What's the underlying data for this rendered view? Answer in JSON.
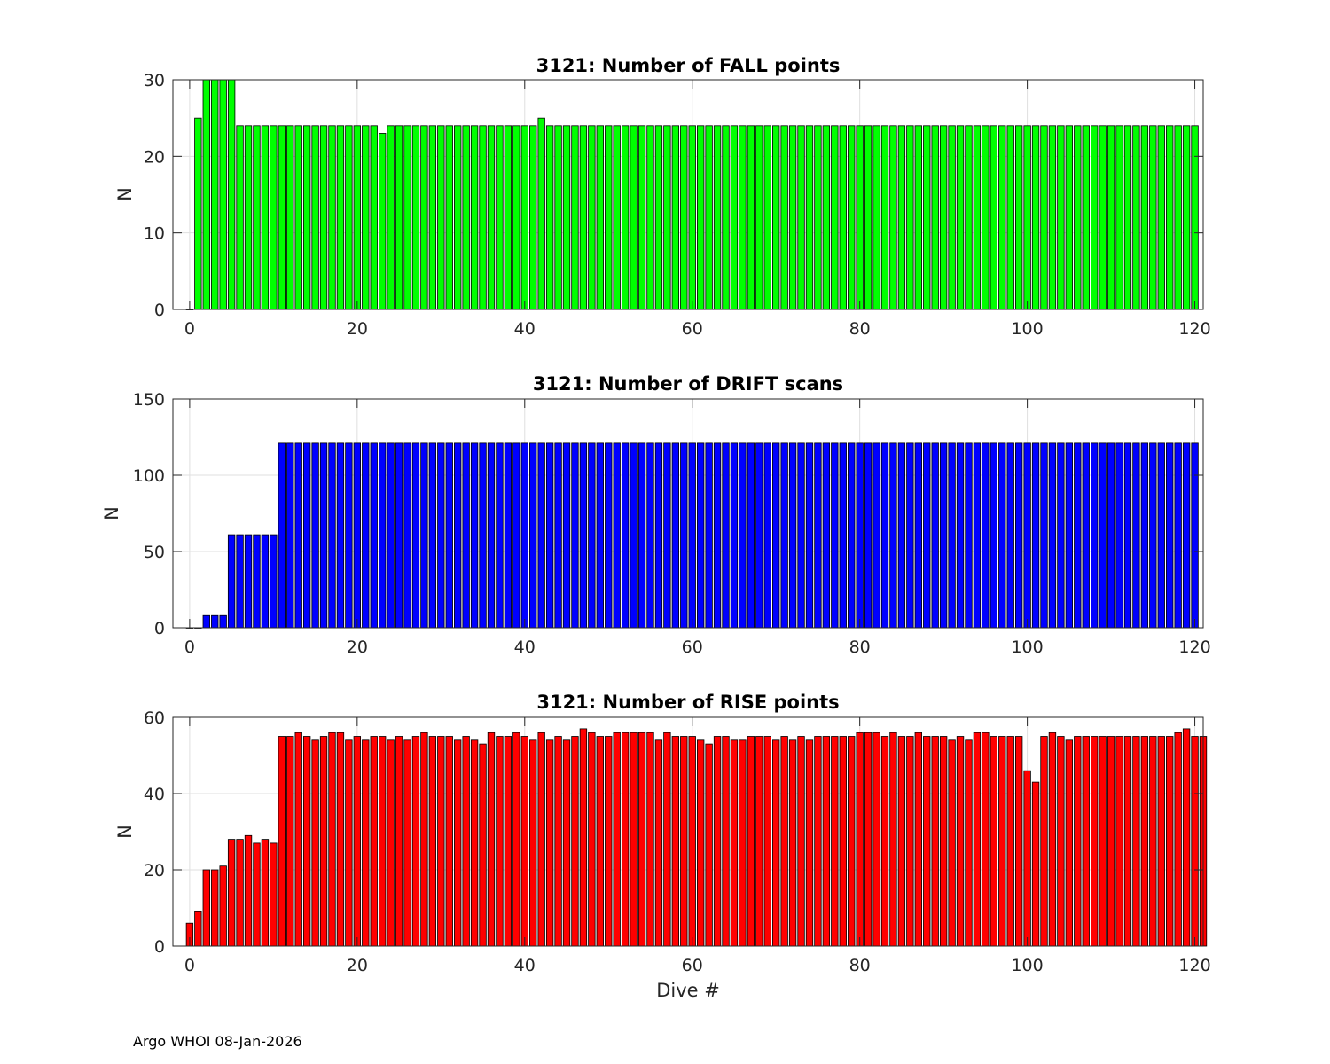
{
  "footer": "Argo WHOI 08-Jan-2026",
  "chart_data": [
    {
      "type": "bar",
      "title": "3121: Number of FALL points",
      "xlabel": "",
      "ylabel": "N",
      "xlim": [
        -2,
        121
      ],
      "ylim": [
        0,
        30
      ],
      "xticks": [
        0,
        20,
        40,
        60,
        80,
        100,
        120
      ],
      "yticks": [
        0,
        10,
        20,
        30
      ],
      "grid": true,
      "color": "#00ff00",
      "x_start": 0,
      "values": [
        0,
        25,
        30,
        30,
        30,
        30,
        24,
        24,
        24,
        24,
        24,
        24,
        24,
        24,
        24,
        24,
        24,
        24,
        24,
        24,
        24,
        24,
        24,
        23,
        24,
        24,
        24,
        24,
        24,
        24,
        24,
        24,
        24,
        24,
        24,
        24,
        24,
        24,
        24,
        24,
        24,
        24,
        25,
        24,
        24,
        24,
        24,
        24,
        24,
        24,
        24,
        24,
        24,
        24,
        24,
        24,
        24,
        24,
        24,
        24,
        24,
        24,
        24,
        24,
        24,
        24,
        24,
        24,
        24,
        24,
        24,
        24,
        24,
        24,
        24,
        24,
        24,
        24,
        24,
        24,
        24,
        24,
        24,
        24,
        24,
        24,
        24,
        24,
        24,
        24,
        24,
        24,
        24,
        24,
        24,
        24,
        24,
        24,
        24,
        24,
        24,
        24,
        24,
        24,
        24,
        24,
        24,
        24,
        24,
        24,
        24,
        24,
        24,
        24,
        24,
        24,
        24,
        24,
        24,
        24,
        24
      ]
    },
    {
      "type": "bar",
      "title": "3121: Number of DRIFT scans",
      "xlabel": "",
      "ylabel": "N",
      "xlim": [
        -2,
        121
      ],
      "ylim": [
        0,
        150
      ],
      "xticks": [
        0,
        20,
        40,
        60,
        80,
        100,
        120
      ],
      "yticks": [
        0,
        50,
        100,
        150
      ],
      "grid": true,
      "color": "#0000ff",
      "x_start": 0,
      "values": [
        0,
        0,
        8,
        8,
        8,
        61,
        61,
        61,
        61,
        61,
        61,
        121,
        121,
        121,
        121,
        121,
        121,
        121,
        121,
        121,
        121,
        121,
        121,
        121,
        121,
        121,
        121,
        121,
        121,
        121,
        121,
        121,
        121,
        121,
        121,
        121,
        121,
        121,
        121,
        121,
        121,
        121,
        121,
        121,
        121,
        121,
        121,
        121,
        121,
        121,
        121,
        121,
        121,
        121,
        121,
        121,
        121,
        121,
        121,
        121,
        121,
        121,
        121,
        121,
        121,
        121,
        121,
        121,
        121,
        121,
        121,
        121,
        121,
        121,
        121,
        121,
        121,
        121,
        121,
        121,
        121,
        121,
        121,
        121,
        121,
        121,
        121,
        121,
        121,
        121,
        121,
        121,
        121,
        121,
        121,
        121,
        121,
        121,
        121,
        121,
        121,
        121,
        121,
        121,
        121,
        121,
        121,
        121,
        121,
        121,
        121,
        121,
        121,
        121,
        121,
        121,
        121,
        121,
        121,
        121,
        121
      ]
    },
    {
      "type": "bar",
      "title": "3121: Number of RISE points",
      "xlabel": "Dive #",
      "ylabel": "N",
      "xlim": [
        -2,
        121
      ],
      "ylim": [
        0,
        60
      ],
      "xticks": [
        0,
        20,
        40,
        60,
        80,
        100,
        120
      ],
      "yticks": [
        0,
        20,
        40,
        60
      ],
      "grid": true,
      "color": "#ff0000",
      "x_start": 0,
      "values": [
        6,
        9,
        20,
        20,
        21,
        28,
        28,
        29,
        27,
        28,
        27,
        55,
        55,
        56,
        55,
        54,
        55,
        56,
        56,
        54,
        55,
        54,
        55,
        55,
        54,
        55,
        54,
        55,
        56,
        55,
        55,
        55,
        54,
        55,
        54,
        53,
        56,
        55,
        55,
        56,
        55,
        54,
        56,
        54,
        55,
        54,
        55,
        57,
        56,
        55,
        55,
        56,
        56,
        56,
        56,
        56,
        54,
        56,
        55,
        55,
        55,
        54,
        53,
        55,
        55,
        54,
        54,
        55,
        55,
        55,
        54,
        55,
        54,
        55,
        54,
        55,
        55,
        55,
        55,
        55,
        56,
        56,
        56,
        55,
        56,
        55,
        55,
        56,
        55,
        55,
        55,
        54,
        55,
        54,
        56,
        56,
        55,
        55,
        55,
        55,
        46,
        43,
        55,
        56,
        55,
        54,
        55,
        55,
        55,
        55,
        55,
        55,
        55,
        55,
        55,
        55,
        55,
        55,
        56,
        57,
        55,
        55
      ]
    }
  ]
}
